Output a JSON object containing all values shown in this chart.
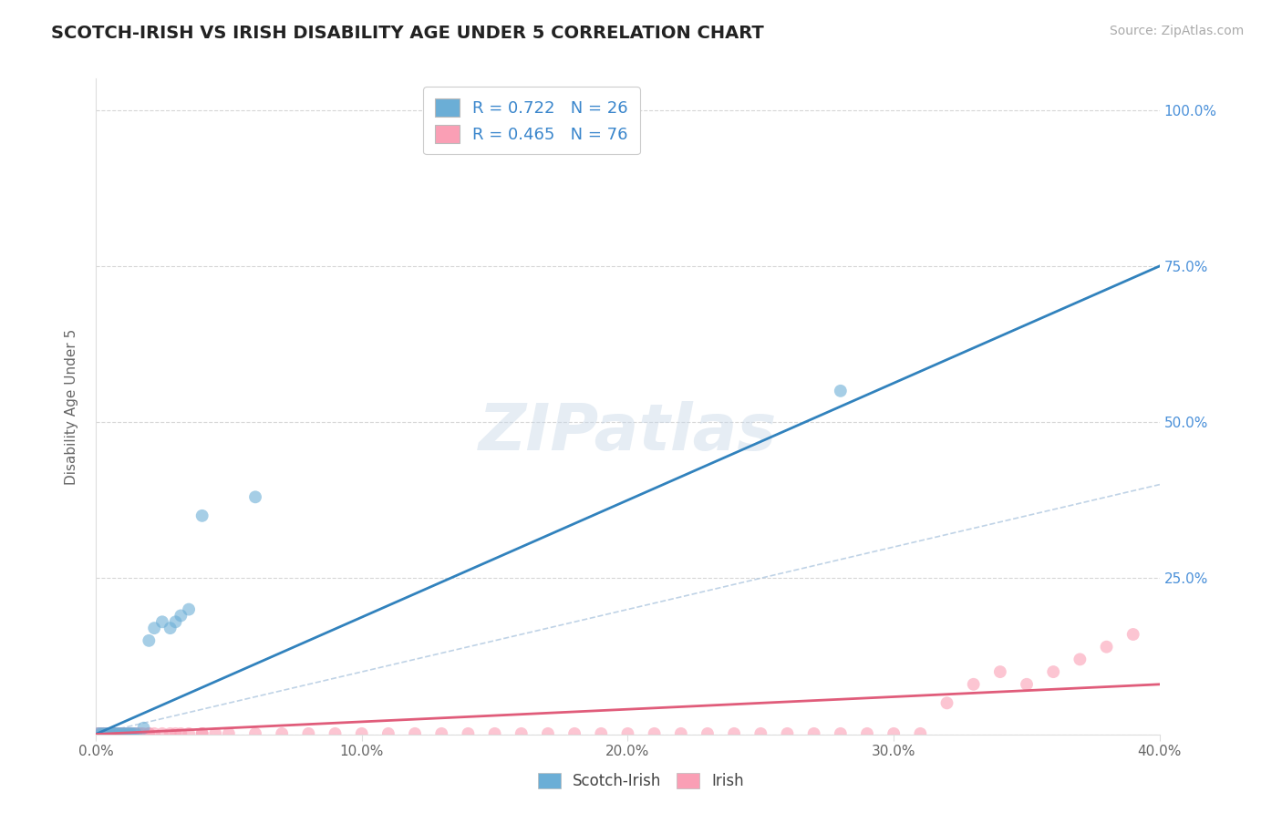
{
  "title": "SCOTCH-IRISH VS IRISH DISABILITY AGE UNDER 5 CORRELATION CHART",
  "source": "Source: ZipAtlas.com",
  "ylabel": "Disability Age Under 5",
  "watermark": "ZIPatlas",
  "scotch_irish_x": [
    0.001,
    0.002,
    0.003,
    0.004,
    0.005,
    0.006,
    0.007,
    0.008,
    0.009,
    0.01,
    0.011,
    0.012,
    0.013,
    0.014,
    0.015,
    0.018,
    0.02,
    0.022,
    0.025,
    0.028,
    0.03,
    0.032,
    0.035,
    0.04,
    0.06,
    0.28
  ],
  "scotch_irish_y": [
    0.001,
    0.001,
    0.001,
    0.001,
    0.001,
    0.001,
    0.001,
    0.001,
    0.001,
    0.001,
    0.001,
    0.001,
    0.001,
    0.001,
    0.001,
    0.01,
    0.15,
    0.17,
    0.18,
    0.17,
    0.18,
    0.19,
    0.2,
    0.35,
    0.38,
    0.55
  ],
  "irish_x": [
    0.001,
    0.002,
    0.002,
    0.003,
    0.003,
    0.004,
    0.004,
    0.005,
    0.005,
    0.006,
    0.006,
    0.007,
    0.007,
    0.008,
    0.008,
    0.009,
    0.01,
    0.01,
    0.011,
    0.012,
    0.013,
    0.014,
    0.015,
    0.016,
    0.017,
    0.018,
    0.02,
    0.022,
    0.025,
    0.028,
    0.03,
    0.032,
    0.035,
    0.04,
    0.045,
    0.05,
    0.06,
    0.07,
    0.08,
    0.09,
    0.1,
    0.11,
    0.12,
    0.13,
    0.14,
    0.15,
    0.16,
    0.17,
    0.18,
    0.19,
    0.2,
    0.21,
    0.22,
    0.23,
    0.24,
    0.25,
    0.26,
    0.27,
    0.28,
    0.29,
    0.3,
    0.31,
    0.32,
    0.33,
    0.34,
    0.35,
    0.36,
    0.37,
    0.38,
    0.39,
    0.001,
    0.003,
    0.005,
    0.01,
    0.02,
    0.04
  ],
  "irish_y": [
    0.001,
    0.001,
    0.001,
    0.001,
    0.001,
    0.001,
    0.001,
    0.001,
    0.001,
    0.001,
    0.001,
    0.001,
    0.001,
    0.001,
    0.001,
    0.001,
    0.001,
    0.001,
    0.001,
    0.001,
    0.001,
    0.001,
    0.001,
    0.001,
    0.001,
    0.001,
    0.001,
    0.001,
    0.001,
    0.001,
    0.001,
    0.001,
    0.001,
    0.001,
    0.001,
    0.001,
    0.001,
    0.001,
    0.001,
    0.001,
    0.001,
    0.001,
    0.001,
    0.001,
    0.001,
    0.001,
    0.001,
    0.001,
    0.001,
    0.001,
    0.001,
    0.001,
    0.001,
    0.001,
    0.001,
    0.001,
    0.001,
    0.001,
    0.001,
    0.001,
    0.001,
    0.001,
    0.05,
    0.08,
    0.1,
    0.08,
    0.1,
    0.12,
    0.14,
    0.16,
    0.001,
    0.001,
    0.001,
    0.001,
    0.001,
    0.001
  ],
  "R_scotch": 0.722,
  "N_scotch": 26,
  "R_irish": 0.465,
  "N_irish": 76,
  "scotch_color": "#6baed6",
  "irish_color": "#fa9fb5",
  "scotch_line_color": "#3182bd",
  "irish_line_color": "#e05c7a",
  "diagonal_color": "#b0c8e0",
  "xlim": [
    0.0,
    0.4
  ],
  "ylim": [
    0.0,
    1.05
  ],
  "xticks": [
    0.0,
    0.1,
    0.2,
    0.3,
    0.4
  ],
  "xtick_labels": [
    "0.0%",
    "10.0%",
    "20.0%",
    "30.0%",
    "40.0%"
  ],
  "yticks": [
    0.0,
    0.25,
    0.5,
    0.75,
    1.0
  ],
  "ytick_labels_right": [
    "",
    "25.0%",
    "50.0%",
    "75.0%",
    "100.0%"
  ],
  "scotch_trendline_x0": 0.0,
  "scotch_trendline_y0": 0.0,
  "scotch_trendline_x1": 0.4,
  "scotch_trendline_y1": 0.75,
  "irish_trendline_x0": 0.0,
  "irish_trendline_y0": 0.0,
  "irish_trendline_x1": 0.4,
  "irish_trendline_y1": 0.08,
  "title_fontsize": 14,
  "label_fontsize": 11,
  "tick_fontsize": 11,
  "source_fontsize": 10
}
